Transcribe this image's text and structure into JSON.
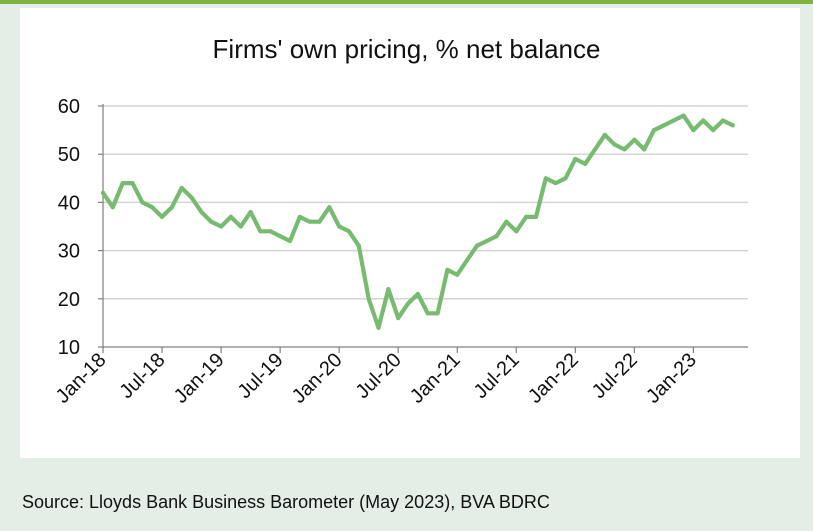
{
  "chart_data": {
    "type": "line",
    "title": "Firms' own pricing, % net balance",
    "xlabel": "",
    "ylabel": "",
    "ylim": [
      10,
      60
    ],
    "yticks": [
      10,
      20,
      30,
      40,
      50,
      60
    ],
    "grid": true,
    "x_tick_labels": [
      "Jan-18",
      "Jul-18",
      "Jan-19",
      "Jul-19",
      "Jan-20",
      "Jul-20",
      "Jan-21",
      "Jul-21",
      "Jan-22",
      "Jul-22",
      "Jan-23"
    ],
    "series": [
      {
        "color": "#77bb70",
        "x": [
          "Jan-18",
          "Feb-18",
          "Mar-18",
          "Apr-18",
          "May-18",
          "Jun-18",
          "Jul-18",
          "Aug-18",
          "Sep-18",
          "Oct-18",
          "Nov-18",
          "Dec-18",
          "Jan-19",
          "Feb-19",
          "Mar-19",
          "Apr-19",
          "May-19",
          "Jun-19",
          "Jul-19",
          "Aug-19",
          "Sep-19",
          "Oct-19",
          "Nov-19",
          "Dec-19",
          "Jan-20",
          "Feb-20",
          "Mar-20",
          "Apr-20",
          "May-20",
          "Jun-20",
          "Jul-20",
          "Aug-20",
          "Sep-20",
          "Oct-20",
          "Nov-20",
          "Dec-20",
          "Jan-21",
          "Feb-21",
          "Mar-21",
          "Apr-21",
          "May-21",
          "Jun-21",
          "Jul-21",
          "Aug-21",
          "Sep-21",
          "Oct-21",
          "Nov-21",
          "Dec-21",
          "Jan-22",
          "Feb-22",
          "Mar-22",
          "Apr-22",
          "May-22",
          "Jun-22",
          "Jul-22",
          "Aug-22",
          "Sep-22",
          "Oct-22",
          "Nov-22",
          "Dec-22",
          "Jan-23",
          "Feb-23",
          "Mar-23",
          "Apr-23",
          "May-23"
        ],
        "values": [
          42,
          39,
          44,
          44,
          40,
          39,
          37,
          39,
          43,
          41,
          38,
          36,
          35,
          37,
          35,
          38,
          34,
          34,
          33,
          32,
          37,
          36,
          36,
          39,
          35,
          34,
          31,
          20,
          14,
          22,
          16,
          19,
          21,
          17,
          17,
          26,
          25,
          28,
          31,
          32,
          33,
          36,
          34,
          37,
          37,
          45,
          44,
          45,
          49,
          48,
          51,
          54,
          52,
          51,
          53,
          51,
          55,
          56,
          57,
          58,
          55,
          57,
          55,
          57,
          56
        ]
      }
    ]
  },
  "footer": {
    "source": "Source: Lloyds Bank Business Barometer (May 2023), BVA BDRC"
  },
  "colors": {
    "line": "#77bb70",
    "accent_rule": "#7fb241",
    "background": "#e4ede6"
  }
}
